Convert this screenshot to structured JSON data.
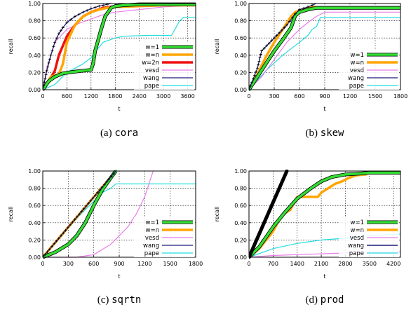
{
  "figure": {
    "colors": {
      "w=1": "#33dd33",
      "w=n": "#ffa500",
      "w=2n": "#ee1111",
      "vesd": "#e87ee8",
      "wang": "#1a1a7a",
      "pape": "#22dddd",
      "markers": "#000000",
      "grid": "#000000"
    },
    "legend_placement": "bottom-right inside each panel",
    "grid": "dotted"
  },
  "chart_data": [
    {
      "type": "line",
      "caption_letter": "(a)",
      "caption_name": "cora",
      "xlabel": "t",
      "ylabel": "recall",
      "xlim": [
        0,
        3800
      ],
      "ylim": [
        0,
        1
      ],
      "xticks": [
        "0",
        "600",
        "1200",
        "1800",
        "2400",
        "3000",
        "3600"
      ],
      "yticks": [
        "0.00",
        "0.20",
        "0.40",
        "0.60",
        "0.80",
        "1.00"
      ],
      "legend": [
        "w=1",
        "w=n",
        "w=2n",
        "vesd",
        "wang",
        "pape"
      ],
      "series": [
        {
          "name": "w=1",
          "style": "thick-with-markers",
          "x": [
            0,
            150,
            300,
            500,
            800,
            1000,
            1200,
            1250,
            1300,
            1450,
            1550,
            1700,
            1800,
            2000,
            2400,
            3000,
            3800
          ],
          "y": [
            0,
            0.1,
            0.15,
            0.19,
            0.21,
            0.22,
            0.23,
            0.3,
            0.45,
            0.7,
            0.85,
            0.95,
            0.97,
            0.98,
            0.99,
            0.99,
            0.99
          ]
        },
        {
          "name": "w=n",
          "style": "thick",
          "x": [
            0,
            200,
            400,
            500,
            600,
            800,
            1000,
            1200,
            1400,
            1600,
            1800,
            2400,
            3000,
            3800
          ],
          "y": [
            0,
            0.15,
            0.18,
            0.3,
            0.55,
            0.75,
            0.85,
            0.9,
            0.93,
            0.95,
            0.96,
            0.97,
            0.98,
            0.98
          ]
        },
        {
          "name": "w=2n",
          "style": "thick",
          "x": [
            0,
            100,
            200,
            300,
            400,
            600,
            800,
            1000,
            1200,
            1500,
            1800,
            2400,
            3000,
            3800
          ],
          "y": [
            0,
            0.06,
            0.14,
            0.22,
            0.4,
            0.62,
            0.75,
            0.85,
            0.9,
            0.95,
            0.97,
            0.98,
            0.99,
            0.99
          ]
        },
        {
          "name": "vesd",
          "style": "thin",
          "x": [
            0,
            100,
            300,
            600,
            900,
            1200,
            1500,
            1800,
            2400,
            3000,
            3800
          ],
          "y": [
            0,
            0.25,
            0.55,
            0.7,
            0.77,
            0.82,
            0.87,
            0.9,
            0.93,
            0.96,
            0.98
          ]
        },
        {
          "name": "wang",
          "style": "thin-with-markers",
          "x": [
            0,
            100,
            200,
            300,
            400,
            500,
            600,
            800,
            1000,
            1200,
            1400,
            1600,
            1700
          ],
          "y": [
            0,
            0.22,
            0.4,
            0.55,
            0.65,
            0.72,
            0.78,
            0.85,
            0.9,
            0.94,
            0.97,
            0.99,
            1.0
          ]
        },
        {
          "name": "pape",
          "style": "thin",
          "x": [
            0,
            300,
            600,
            800,
            1000,
            1200,
            1300,
            1500,
            1800,
            2000,
            2600,
            3200,
            3400,
            3500,
            3800
          ],
          "y": [
            0,
            0.06,
            0.2,
            0.25,
            0.3,
            0.37,
            0.44,
            0.55,
            0.6,
            0.62,
            0.63,
            0.63,
            0.8,
            0.84,
            0.84
          ]
        }
      ]
    },
    {
      "type": "line",
      "caption_letter": "(b)",
      "caption_name": "skew",
      "xlabel": "t",
      "ylabel": "recall",
      "xlim": [
        0,
        1800
      ],
      "ylim": [
        0,
        1
      ],
      "xticks": [
        "0",
        "300",
        "600",
        "900",
        "1200",
        "1500",
        "1800"
      ],
      "yticks": [
        "0.00",
        "0.20",
        "0.40",
        "0.60",
        "0.80",
        "1.00"
      ],
      "legend": [
        "w=1",
        "w=n",
        "vesd",
        "wang",
        "pape"
      ],
      "series": [
        {
          "name": "w=1",
          "style": "thick-with-markers",
          "x": [
            0,
            100,
            200,
            300,
            400,
            500,
            550,
            600,
            700,
            800,
            900,
            1800
          ],
          "y": [
            0,
            0.15,
            0.3,
            0.45,
            0.58,
            0.72,
            0.86,
            0.9,
            0.93,
            0.95,
            0.95,
            0.95
          ]
        },
        {
          "name": "w=n",
          "style": "thick",
          "x": [
            0,
            100,
            200,
            300,
            400,
            500,
            550,
            600,
            700,
            780
          ],
          "y": [
            0,
            0.18,
            0.38,
            0.55,
            0.7,
            0.85,
            0.9,
            0.92,
            0.95,
            0.96
          ]
        },
        {
          "name": "vesd",
          "style": "thin",
          "x": [
            0,
            150,
            300,
            450,
            600,
            700,
            800,
            900,
            1800
          ],
          "y": [
            0,
            0.15,
            0.35,
            0.55,
            0.7,
            0.78,
            0.85,
            0.9,
            0.9
          ]
        },
        {
          "name": "wang",
          "style": "thin-with-markers",
          "x": [
            0,
            100,
            150,
            300,
            450,
            550,
            600,
            700,
            800
          ],
          "y": [
            0,
            0.25,
            0.45,
            0.6,
            0.75,
            0.88,
            0.93,
            0.96,
            1.0
          ]
        },
        {
          "name": "pape",
          "style": "thin",
          "x": [
            0,
            200,
            400,
            600,
            700,
            750,
            800,
            850,
            1800
          ],
          "y": [
            0,
            0.22,
            0.4,
            0.55,
            0.63,
            0.7,
            0.73,
            0.84,
            0.84
          ]
        }
      ]
    },
    {
      "type": "line",
      "caption_letter": "(c)",
      "caption_name": "sqrtn",
      "xlabel": "t",
      "ylabel": "recall",
      "xlim": [
        0,
        1800
      ],
      "ylim": [
        0,
        1
      ],
      "xticks": [
        "0",
        "300",
        "600",
        "900",
        "1200",
        "1500",
        "1800"
      ],
      "yticks": [
        "0.00",
        "0.20",
        "0.40",
        "0.60",
        "0.80",
        "1.00"
      ],
      "legend": [
        "w=1",
        "w=n",
        "vesd",
        "wang",
        "pape"
      ],
      "series": [
        {
          "name": "w=1",
          "style": "thick-with-markers",
          "x": [
            0,
            150,
            300,
            400,
            500,
            600,
            700,
            800,
            860
          ],
          "y": [
            0,
            0.06,
            0.15,
            0.25,
            0.4,
            0.6,
            0.78,
            0.92,
            1.0
          ]
        },
        {
          "name": "w=n",
          "style": "thick",
          "x": [
            0,
            860
          ],
          "y": [
            0,
            1.0
          ]
        },
        {
          "name": "vesd",
          "style": "thin",
          "x": [
            0,
            400,
            600,
            800,
            1000,
            1100,
            1200,
            1300
          ],
          "y": [
            0,
            0.0,
            0.03,
            0.15,
            0.35,
            0.5,
            0.7,
            1.0
          ]
        },
        {
          "name": "wang",
          "style": "thin-with-markers",
          "x": [
            0,
            860
          ],
          "y": [
            0,
            1.0
          ]
        },
        {
          "name": "pape",
          "style": "thin",
          "x": [
            0,
            200,
            400,
            600,
            700,
            800,
            860,
            1000,
            1800
          ],
          "y": [
            0,
            0.22,
            0.45,
            0.65,
            0.75,
            0.8,
            0.85,
            0.85,
            0.85
          ]
        }
      ]
    },
    {
      "type": "line",
      "caption_letter": "(d)",
      "caption_name": "prod",
      "xlabel": "t",
      "ylabel": "recall",
      "xlim": [
        0,
        4400
      ],
      "ylim": [
        0,
        1
      ],
      "xticks": [
        "0",
        "700",
        "1400",
        "2100",
        "2800",
        "3500",
        "4200"
      ],
      "yticks": [
        "0.00",
        "0.20",
        "0.40",
        "0.60",
        "0.80",
        "1.00"
      ],
      "legend": [
        "w=1",
        "w=n",
        "vesd",
        "wang",
        "pape"
      ],
      "series": [
        {
          "name": "w=1",
          "style": "thick-with-markers",
          "x": [
            0,
            300,
            700,
            1000,
            1400,
            1800,
            2100,
            2400,
            2800,
            3200,
            3500,
            4400
          ],
          "y": [
            0,
            0.12,
            0.35,
            0.5,
            0.68,
            0.8,
            0.88,
            0.93,
            0.96,
            0.97,
            0.98,
            0.98
          ]
        },
        {
          "name": "w=n",
          "style": "thick",
          "x": [
            0,
            300,
            700,
            900,
            1000,
            1200,
            1400,
            1600,
            1800,
            2000,
            2100,
            2300,
            2500,
            2700,
            2900,
            3100,
            3400
          ],
          "y": [
            0,
            0.1,
            0.3,
            0.45,
            0.5,
            0.55,
            0.7,
            0.7,
            0.7,
            0.7,
            0.75,
            0.8,
            0.85,
            0.88,
            0.92,
            0.95,
            0.96
          ]
        },
        {
          "name": "vesd",
          "style": "thin",
          "x": [
            0,
            700,
            1400,
            2100,
            2800,
            3500,
            4400
          ],
          "y": [
            0,
            0.02,
            0.03,
            0.04,
            0.05,
            0.06,
            0.06
          ]
        },
        {
          "name": "wang",
          "style": "thick-black",
          "x": [
            0,
            1100
          ],
          "y": [
            0,
            1.0
          ]
        },
        {
          "name": "pape",
          "style": "thin",
          "x": [
            0,
            700,
            1400,
            2100,
            2800,
            3500,
            4400
          ],
          "y": [
            0,
            0.1,
            0.16,
            0.2,
            0.22,
            0.25,
            0.27
          ]
        }
      ]
    }
  ]
}
